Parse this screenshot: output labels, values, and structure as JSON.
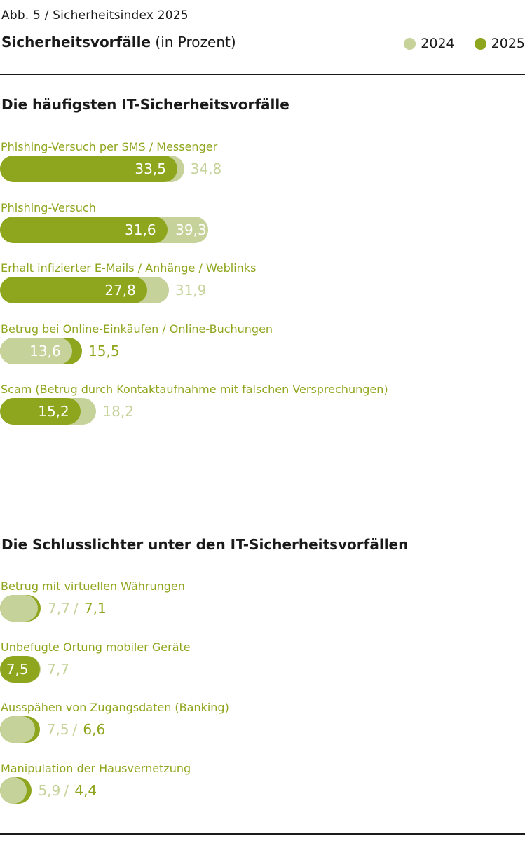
{
  "header": {
    "figure_label": "Abb. 5 / Sicherheitsindex 2025",
    "title_bold": "Sicherheitsvorfälle",
    "title_rest": "(in Prozent)"
  },
  "colors": {
    "y2024": "#c5d29a",
    "y2025": "#8ea61d",
    "text_light_on_dark": "#ffffff",
    "rule": "#1a1a1a"
  },
  "chart_data": [
    {
      "type": "bar",
      "title": "Die häufigsten IT-Sicherheitsvorfälle",
      "xlabel": "",
      "ylabel": "",
      "categories": [
        "Phishing-Versuch per SMS / Messenger",
        "Phishing-Versuch",
        "Erhalt infizierter E-Mails / Anhänge / Weblinks",
        "Betrug bei Online-Einkäufen / Online-Buchungen",
        "Scam (Betrug durch Kontaktaufnahme mit falschen Versprechungen)"
      ],
      "series": [
        {
          "name": "2024",
          "values": [
            34.8,
            39.3,
            31.9,
            13.6,
            18.2
          ],
          "labels": [
            "34,8",
            "39,3",
            "31,9",
            "13,6",
            "18,2"
          ]
        },
        {
          "name": "2025",
          "values": [
            33.5,
            31.6,
            27.8,
            15.5,
            15.2
          ],
          "labels": [
            "33,5",
            "31,6",
            "27,8",
            "15,5",
            "15,2"
          ]
        }
      ],
      "legend": "top-right",
      "grid": false
    },
    {
      "type": "bar",
      "title": "Die Schlusslichter unter den IT-Sicherheitsvorfällen",
      "xlabel": "",
      "ylabel": "",
      "categories": [
        "Betrug mit virtuellen Währungen",
        "Unbefugte Ortung mobiler Geräte",
        "Ausspähen von Zugangsdaten (Banking)",
        "Manipulation der Hausvernetzung"
      ],
      "series": [
        {
          "name": "2024",
          "values": [
            7.1,
            7.7,
            6.6,
            4.4
          ],
          "labels": [
            "7,1",
            "7,7",
            "6,6",
            "4,4"
          ]
        },
        {
          "name": "2025",
          "values": [
            7.7,
            7.5,
            7.5,
            5.9
          ],
          "labels": [
            "7,7",
            "7,5",
            "7,5",
            "5,9"
          ]
        }
      ],
      "separator": "/",
      "legend": "top-right",
      "grid": false
    }
  ]
}
